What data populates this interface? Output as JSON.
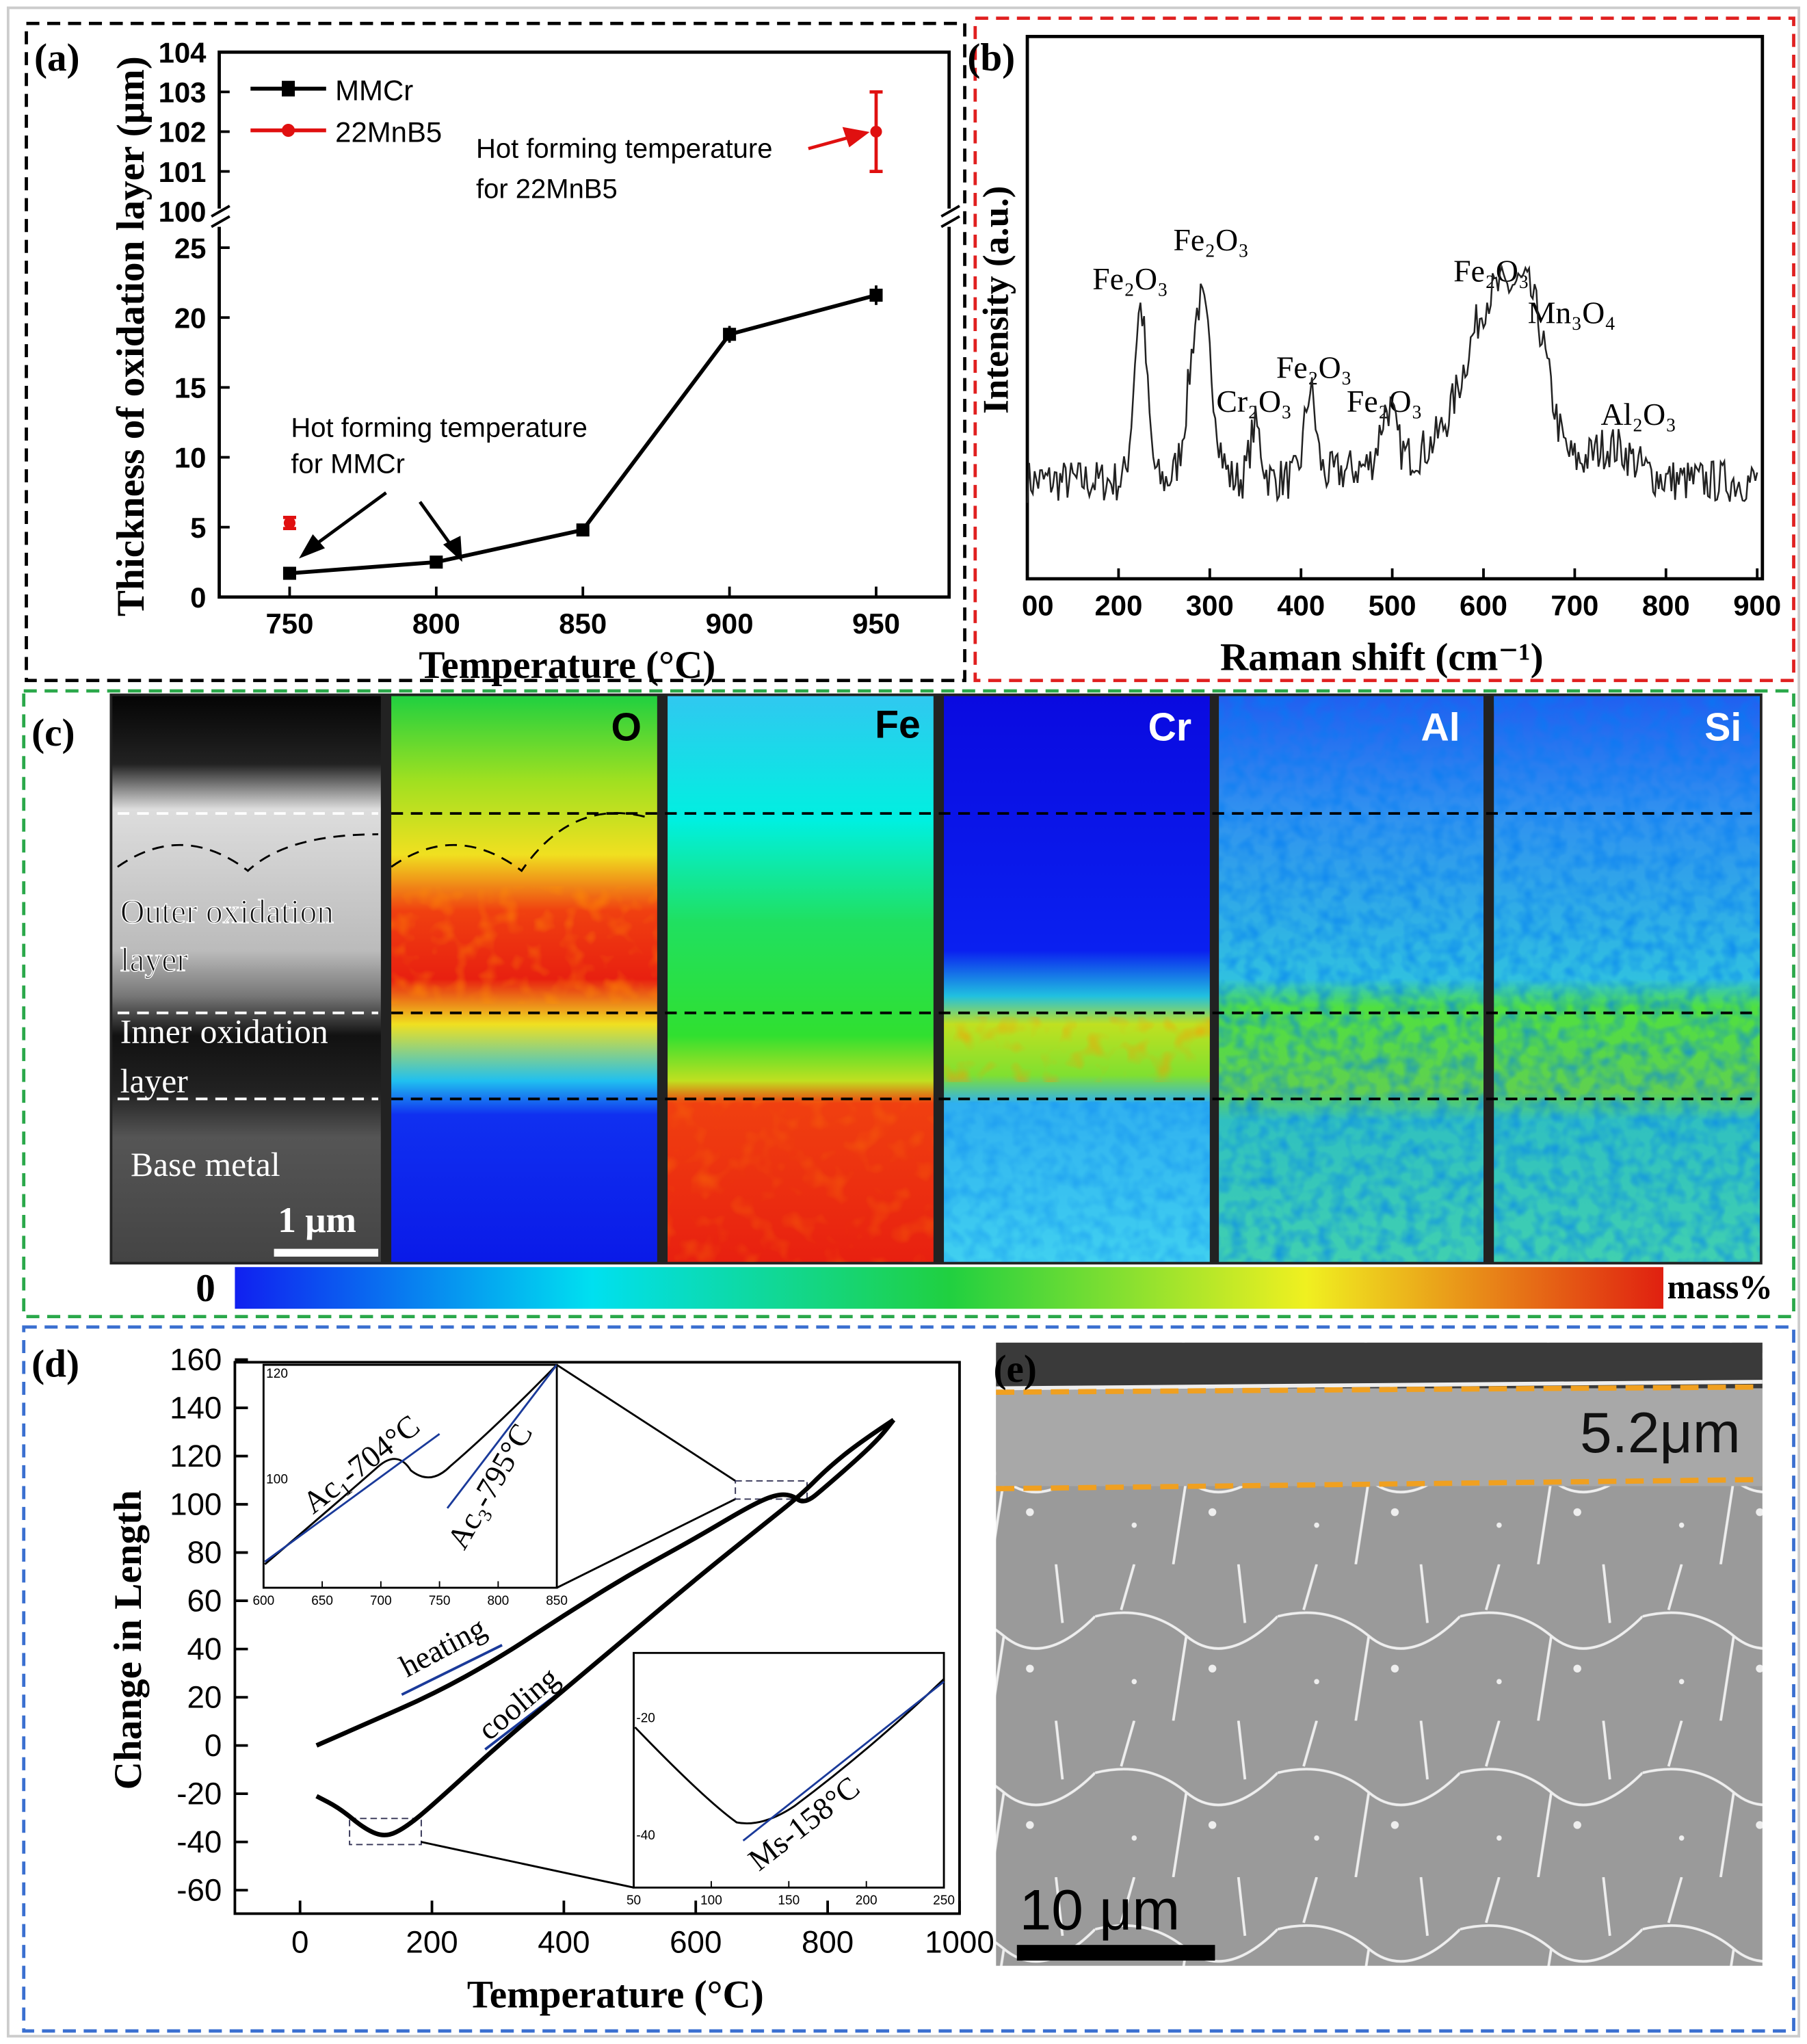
{
  "panels": {
    "a": {
      "label": "(a)",
      "frame_color": "#000000"
    },
    "b": {
      "label": "(b)",
      "frame_color": "#e02020"
    },
    "c": {
      "label": "(c)",
      "frame_color": "#2aa84a"
    },
    "d": {
      "label": "(d)",
      "frame_color": "#3a6fd0"
    },
    "e": {
      "label": "(e)",
      "frame_color": "#3a6fd0"
    }
  },
  "chart_data": [
    {
      "id": "a",
      "type": "line",
      "xlabel": "Temperature (°C)",
      "ylabel": "Thickness of oxidation layer (μm)",
      "x_ticks": [
        "750",
        "800",
        "850",
        "900",
        "950"
      ],
      "y_ticks_lower": [
        "0",
        "5",
        "10",
        "15",
        "20",
        "25"
      ],
      "y_ticks_upper": [
        "100",
        "101",
        "102",
        "103",
        "104"
      ],
      "ylim_lower": [
        0,
        26.5
      ],
      "ylim_upper": [
        100,
        104
      ],
      "axis_break": true,
      "legend_position": "top-left",
      "series": [
        {
          "name": "MMCr",
          "color": "#000000",
          "marker": "square",
          "x": [
            750,
            800,
            850,
            900,
            950
          ],
          "y": [
            1.7,
            2.5,
            4.8,
            18.8,
            21.6
          ],
          "err": [
            0.2,
            0.2,
            0.4,
            0.6,
            0.7
          ]
        },
        {
          "name": "22MnB5",
          "color": "#e01010",
          "marker": "circle",
          "x": [
            750,
            950
          ],
          "y": [
            5.3,
            102.0
          ],
          "err": [
            0.4,
            1.0
          ]
        }
      ],
      "annotations": [
        {
          "line1": "Hot forming temperature",
          "line2": "for 22MnB5"
        },
        {
          "line1": "Hot forming temperature",
          "line2": "for MMCr"
        }
      ]
    },
    {
      "id": "b",
      "type": "line",
      "xlabel": "Raman shift (cm⁻¹)",
      "ylabel": "Intensity (a.u.)",
      "x_ticks": [
        "00",
        "200",
        "300",
        "400",
        "500",
        "600",
        "700",
        "800",
        "900"
      ],
      "xlim": [
        100,
        900
      ],
      "ylim": [
        0,
        1
      ],
      "baseline": 0.18,
      "noise": 0.04,
      "peaks": [
        {
          "center": 224,
          "height": 0.32,
          "width": 7,
          "label": "Fe₂O₃"
        },
        {
          "center": 290,
          "height": 0.33,
          "width": 12,
          "label": "Fe₂O₃"
        },
        {
          "center": 350,
          "height": 0.1,
          "width": 6,
          "label": "Cr₂O₃"
        },
        {
          "center": 410,
          "height": 0.16,
          "width": 6,
          "label": "Fe₂O₃"
        },
        {
          "center": 495,
          "height": 0.1,
          "width": 8,
          "label": "Fe₂O₃"
        },
        {
          "center": 612,
          "height": 0.3,
          "width": 30,
          "label": "Fe₂O₃"
        },
        {
          "center": 655,
          "height": 0.2,
          "width": 18,
          "label": "Mn₃O₄"
        },
        {
          "center": 740,
          "height": 0.06,
          "width": 25,
          "label": "Al₂O₃"
        }
      ]
    },
    {
      "id": "d",
      "type": "line",
      "xlabel": "Temperature (°C)",
      "ylabel": "Change in Length",
      "x_ticks": [
        "0",
        "200",
        "400",
        "600",
        "800",
        "1000"
      ],
      "y_ticks": [
        "160",
        "140",
        "120",
        "100",
        "80",
        "60",
        "40",
        "20",
        "0",
        "-20",
        "-40",
        "-60"
      ],
      "xlim": [
        -100,
        1000
      ],
      "ylim": [
        -70,
        160
      ],
      "series": [
        {
          "name": "heating",
          "x": [
            25,
            100,
            200,
            300,
            400,
            500,
            600,
            680,
            720,
            745,
            765,
            800,
            850,
            880,
            900
          ],
          "y": [
            0,
            9,
            21,
            36,
            54,
            71,
            86,
            99,
            104,
            104,
            100,
            108,
            120,
            128,
            135
          ]
        },
        {
          "name": "cooling",
          "x": [
            900,
            850,
            800,
            760,
            700,
            600,
            500,
            400,
            300,
            200,
            160,
            130,
            100,
            60,
            25
          ],
          "y": [
            135,
            126,
            115,
            104,
            91,
            69,
            46,
            23,
            0,
            -25,
            -34,
            -38,
            -35,
            -26,
            -21
          ]
        }
      ],
      "labels": {
        "heating": "heating",
        "cooling": "cooling"
      },
      "insets": [
        {
          "x_ticks": [
            "600",
            "650",
            "700",
            "750",
            "800",
            "850"
          ],
          "y_ticks": [
            "120",
            "100"
          ],
          "annotations": [
            "Ac₁-704°C",
            "Ac₃-795°C"
          ]
        },
        {
          "x_ticks": [
            "50",
            "100",
            "150",
            "200",
            "250"
          ],
          "y_ticks": [
            "-20",
            "-40"
          ],
          "annotations": [
            "Ms-158°C"
          ]
        }
      ]
    }
  ],
  "eds_maps": {
    "layers": [
      "Outer oxidation",
      "layer",
      "Inner oxidation",
      "layer",
      "Base metal"
    ],
    "scale_bar": "1 μm",
    "elements": [
      "O",
      "Fe",
      "Cr",
      "Al",
      "Si"
    ],
    "colorbar_min": "0",
    "colorbar_unit": "mass%"
  },
  "sem": {
    "thickness": "5.2μm",
    "scale_bar": "10 μm",
    "line_color": "#f0a020"
  }
}
